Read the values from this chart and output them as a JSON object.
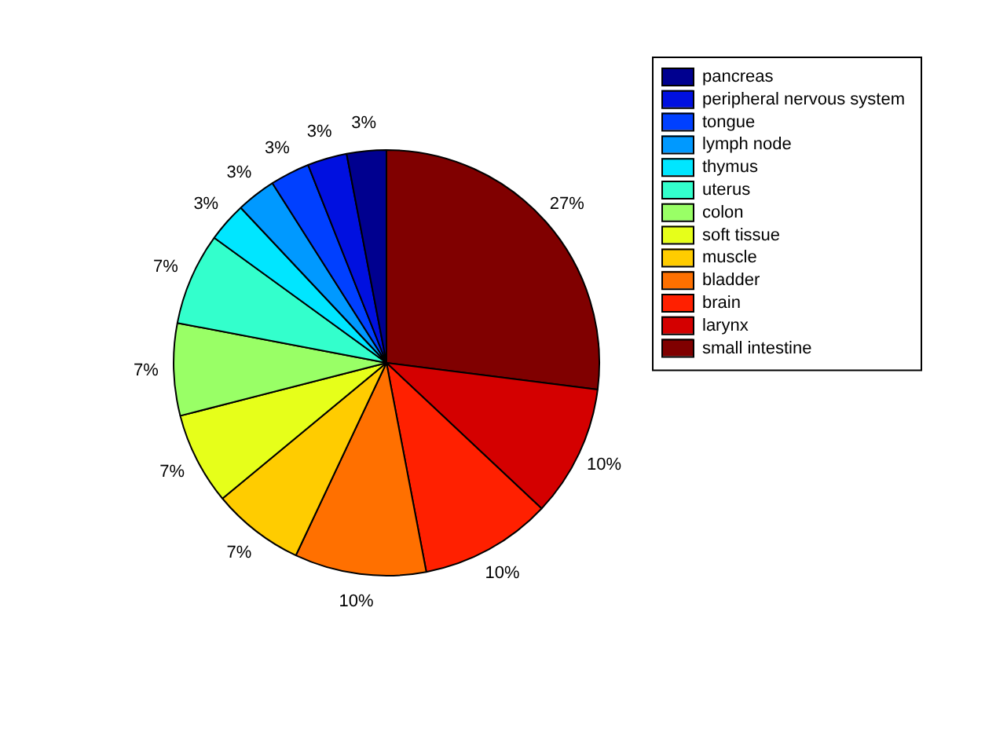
{
  "chart_data": {
    "type": "pie",
    "categories": [
      "small intestine",
      "larynx",
      "brain",
      "bladder",
      "muscle",
      "soft tissue",
      "colon",
      "uterus",
      "thymus",
      "lymph node",
      "tongue",
      "peripheral nervous system",
      "pancreas"
    ],
    "values": [
      27,
      10,
      10,
      10,
      7,
      7,
      7,
      7,
      3,
      3,
      3,
      3,
      3
    ],
    "colors": [
      "#800000",
      "#d40000",
      "#ff2000",
      "#ff7000",
      "#ffcc00",
      "#e6ff1a",
      "#99ff66",
      "#33ffcc",
      "#00e6ff",
      "#0099ff",
      "#0040ff",
      "#0010e0",
      "#00008f"
    ],
    "value_labels": [
      "27%",
      "10%",
      "10%",
      "10%",
      "7%",
      "7%",
      "7%",
      "7%",
      "3%",
      "3%",
      "3%",
      "3%",
      "3%"
    ],
    "legend": "top right"
  }
}
